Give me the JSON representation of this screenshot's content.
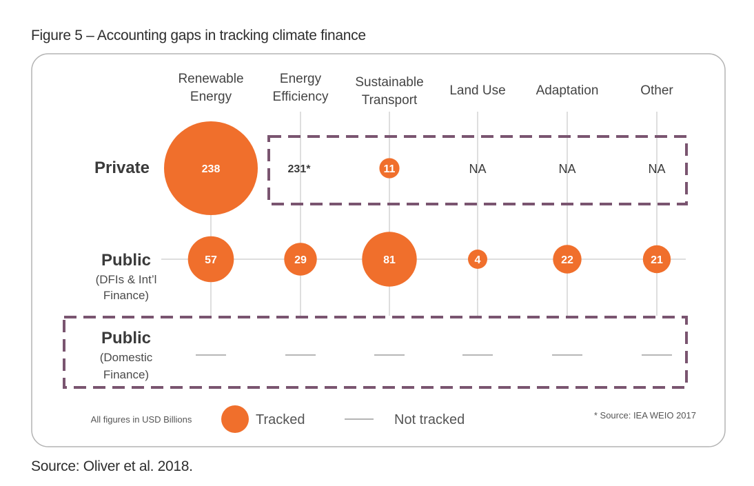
{
  "title": "Figure 5 – Accounting gaps in tracking climate finance",
  "source": "Source: Oliver et al. 2018.",
  "columns": [
    "Renewable Energy",
    "Energy Efficiency",
    "Sustainable Transport",
    "Land Use",
    "Adaptation",
    "Other"
  ],
  "rows": [
    {
      "label": "Private",
      "sublabel": ""
    },
    {
      "label": "Public",
      "sublabel": "(DFIs & Int’l Finance)"
    },
    {
      "label": "Public",
      "sublabel": "(Domestic Finance)"
    }
  ],
  "cells": {
    "private": [
      {
        "status": "tracked",
        "value": 238,
        "text": "238"
      },
      {
        "status": "plain",
        "value": null,
        "text": "231*"
      },
      {
        "status": "tracked",
        "value": 11,
        "text": "11"
      },
      {
        "status": "na",
        "value": null,
        "text": "NA"
      },
      {
        "status": "na",
        "value": null,
        "text": "NA"
      },
      {
        "status": "na",
        "value": null,
        "text": "NA"
      }
    ],
    "public_intl": [
      {
        "status": "tracked",
        "value": 57,
        "text": "57"
      },
      {
        "status": "tracked",
        "value": 29,
        "text": "29"
      },
      {
        "status": "tracked",
        "value": 81,
        "text": "81"
      },
      {
        "status": "tracked",
        "value": 4,
        "text": "4"
      },
      {
        "status": "tracked",
        "value": 22,
        "text": "22"
      },
      {
        "status": "tracked",
        "value": 21,
        "text": "21"
      }
    ],
    "public_domestic": [
      {
        "status": "not_tracked"
      },
      {
        "status": "not_tracked"
      },
      {
        "status": "not_tracked"
      },
      {
        "status": "not_tracked"
      },
      {
        "status": "not_tracked"
      },
      {
        "status": "not_tracked"
      }
    ]
  },
  "legend": {
    "units_note": "All figures in USD Billions",
    "tracked": "Tracked",
    "not_tracked": "Not tracked",
    "footnote": "* Source: IEA WEIO 2017"
  },
  "colors": {
    "bubble": "#f06f2c",
    "dashed_box": "#7a5570",
    "grid_line": "#c9c9c9",
    "frame": "#b3b3b3"
  }
}
